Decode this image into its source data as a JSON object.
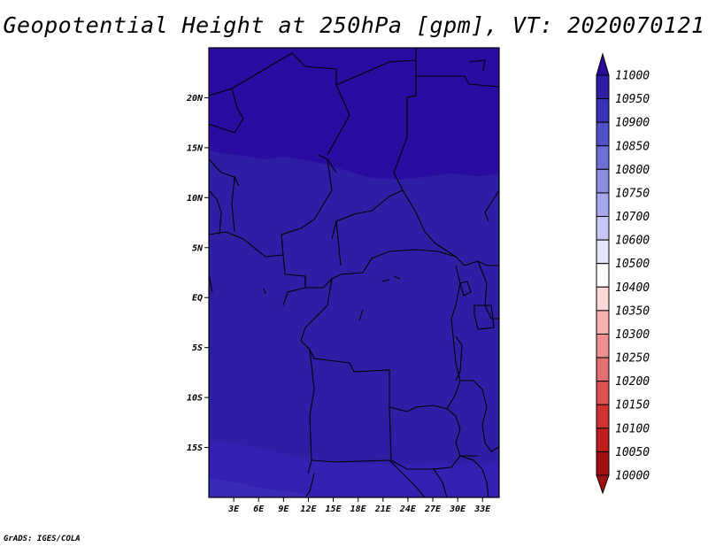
{
  "title": "Geopotential Height at 250hPa [gpm], VT: 2020070121",
  "footer": "GrADS: IGES/COLA",
  "map": {
    "lon_range": [
      0,
      35
    ],
    "lat_range": [
      -20,
      25
    ],
    "lat_ticks": [
      {
        "value": 20,
        "label": "20N"
      },
      {
        "value": 15,
        "label": "15N"
      },
      {
        "value": 10,
        "label": "10N"
      },
      {
        "value": 5,
        "label": "5N"
      },
      {
        "value": 0,
        "label": "EQ"
      },
      {
        "value": -5,
        "label": "5S"
      },
      {
        "value": -10,
        "label": "10S"
      },
      {
        "value": -15,
        "label": "15S"
      }
    ],
    "lon_ticks": [
      {
        "value": 3,
        "label": "3E"
      },
      {
        "value": 6,
        "label": "6E"
      },
      {
        "value": 9,
        "label": "9E"
      },
      {
        "value": 12,
        "label": "12E"
      },
      {
        "value": 15,
        "label": "15E"
      },
      {
        "value": 18,
        "label": "18E"
      },
      {
        "value": 21,
        "label": "21E"
      },
      {
        "value": 24,
        "label": "24E"
      },
      {
        "value": 27,
        "label": "27E"
      },
      {
        "value": 30,
        "label": "30E"
      },
      {
        "value": 33,
        "label": "33E"
      }
    ],
    "colors": {
      "north_band": "#2a0ca0",
      "central_band": "#2e1ea4",
      "south_band": "#3320b0",
      "southmost_band": "#3a2ab8",
      "border": "#000000"
    }
  },
  "colorbar": {
    "levels": [
      "11000",
      "10950",
      "10900",
      "10850",
      "10800",
      "10750",
      "10700",
      "10600",
      "10500",
      "10400",
      "10350",
      "10300",
      "10250",
      "10200",
      "10150",
      "10100",
      "10050",
      "10000"
    ],
    "colors": [
      "#2a0a96",
      "#2e1ea4",
      "#3a32b8",
      "#5050c8",
      "#6e6ed8",
      "#8c8ce4",
      "#a8a8ee",
      "#c8c8f6",
      "#e4e4fa",
      "#ffffff",
      "#fcd8d8",
      "#f6b0b0",
      "#ee9090",
      "#e47070",
      "#dc5050",
      "#d03232",
      "#c01e1e",
      "#a01010"
    ]
  }
}
